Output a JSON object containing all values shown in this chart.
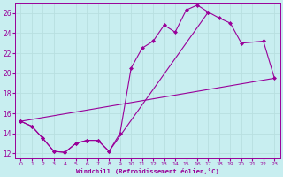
{
  "xlabel": "Windchill (Refroidissement éolien,°C)",
  "background_color": "#c8eef0",
  "line_color": "#990099",
  "grid_color": "#b8dfe0",
  "xlim": [
    -0.5,
    23.5
  ],
  "ylim": [
    11.5,
    27.0
  ],
  "yticks": [
    12,
    14,
    16,
    18,
    20,
    22,
    24,
    26
  ],
  "xticks": [
    0,
    1,
    2,
    3,
    4,
    5,
    6,
    7,
    8,
    9,
    10,
    11,
    12,
    13,
    14,
    15,
    16,
    17,
    18,
    19,
    20,
    21,
    22,
    23
  ],
  "line1_x": [
    0,
    1,
    2,
    3,
    4,
    5,
    6,
    7,
    8,
    9,
    10,
    11,
    12,
    13,
    14,
    15,
    16,
    17
  ],
  "line1_y": [
    15.2,
    14.7,
    13.5,
    12.2,
    12.1,
    13.0,
    13.3,
    13.3,
    12.2,
    14.0,
    20.5,
    22.5,
    23.2,
    24.8,
    24.1,
    26.3,
    26.8,
    26.1
  ],
  "line2_x": [
    0,
    1,
    2,
    3,
    4,
    5,
    6,
    7,
    8,
    17,
    18,
    19,
    20,
    22,
    23
  ],
  "line2_y": [
    15.2,
    14.7,
    13.5,
    12.2,
    12.1,
    13.0,
    13.3,
    13.3,
    12.2,
    26.1,
    25.5,
    25.0,
    23.0,
    23.2,
    19.5
  ],
  "line3_x": [
    0,
    23
  ],
  "line3_y": [
    15.2,
    19.5
  ]
}
